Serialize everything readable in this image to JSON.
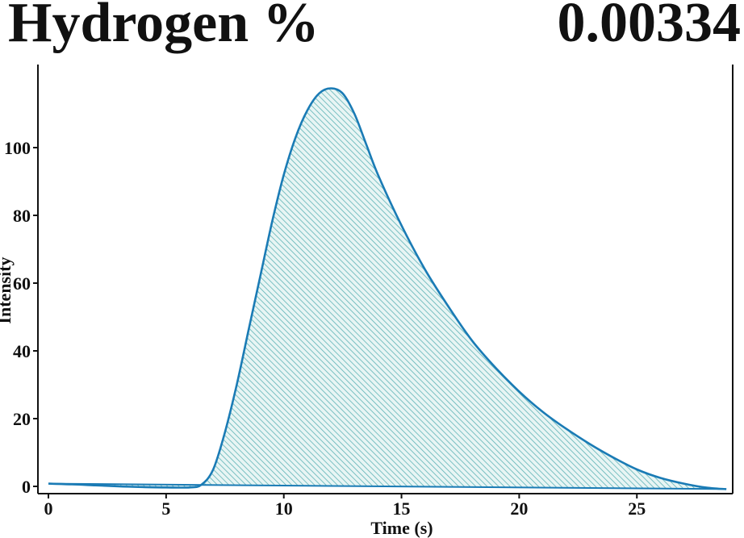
{
  "header": {
    "title": "Hydrogen %",
    "value": "0.00334"
  },
  "chart_data": {
    "type": "area",
    "xlabel": "Time (s)",
    "ylabel": "Intensity",
    "xlim": [
      0,
      29
    ],
    "ylim": [
      -2,
      118
    ],
    "xticks": [
      0,
      5,
      10,
      15,
      20,
      25
    ],
    "yticks": [
      0,
      20,
      40,
      60,
      80,
      100
    ],
    "grid": false,
    "line_color": "#1a7bb5",
    "fill_color": "#7fc7c4",
    "series": [
      {
        "x": [
          0,
          1,
          2,
          3,
          4,
          5,
          6,
          6.5,
          7,
          7.5,
          8,
          8.5,
          9,
          9.5,
          10,
          10.5,
          11,
          11.5,
          12,
          12.5,
          13,
          13.5,
          14,
          15,
          16,
          17,
          18,
          19,
          20,
          21,
          22,
          23,
          24,
          25,
          26,
          27,
          28,
          28.8
        ],
        "y": [
          0.8,
          0.6,
          0.3,
          0.0,
          -0.2,
          -0.3,
          -0.3,
          0.5,
          5,
          16,
          30,
          46,
          62,
          78,
          92,
          103,
          111,
          116,
          117.5,
          116,
          110,
          101,
          92,
          77,
          64,
          53,
          43,
          35,
          28,
          22,
          17,
          12.5,
          8.5,
          5,
          2.5,
          0.8,
          -0.4,
          -0.8
        ]
      }
    ],
    "baseline": {
      "x": [
        0,
        28.8
      ],
      "y": [
        0.8,
        -0.8
      ]
    }
  }
}
